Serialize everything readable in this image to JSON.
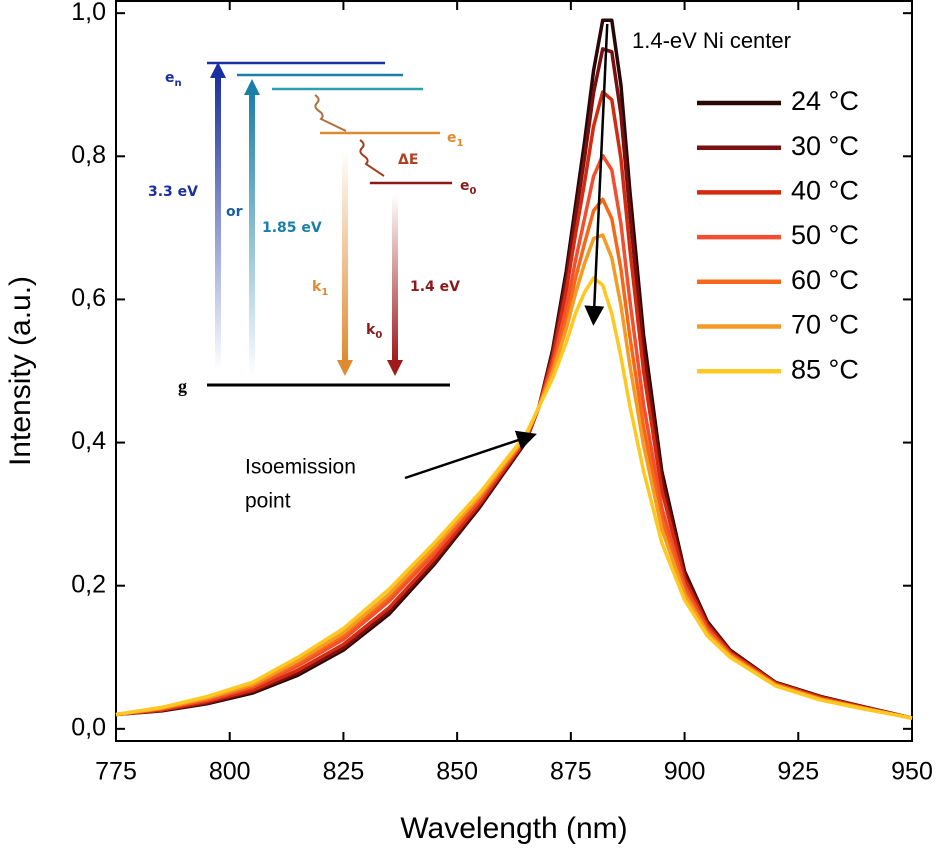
{
  "chart_data": {
    "type": "line",
    "x_label": "Wavelength (nm)",
    "y_label": "Intensity (a.u.)",
    "x": [
      775,
      785,
      795,
      805,
      815,
      825,
      835,
      845,
      855,
      860,
      865,
      868,
      871,
      874,
      876,
      878,
      880,
      882,
      884,
      886,
      888,
      891,
      895,
      900,
      905,
      910,
      920,
      930,
      940,
      950
    ],
    "series": [
      {
        "name": "24 °C",
        "color": "#2a0808",
        "values": [
          0.02,
          0.025,
          0.035,
          0.05,
          0.075,
          0.11,
          0.16,
          0.23,
          0.31,
          0.355,
          0.4,
          0.45,
          0.53,
          0.64,
          0.73,
          0.82,
          0.92,
          0.99,
          0.99,
          0.9,
          0.75,
          0.55,
          0.36,
          0.22,
          0.15,
          0.11,
          0.065,
          0.045,
          0.03,
          0.015
        ]
      },
      {
        "name": "30 °C",
        "color": "#7a1010",
        "values": [
          0.02,
          0.026,
          0.036,
          0.052,
          0.078,
          0.113,
          0.164,
          0.233,
          0.312,
          0.357,
          0.401,
          0.45,
          0.526,
          0.629,
          0.714,
          0.797,
          0.889,
          0.95,
          0.946,
          0.859,
          0.718,
          0.529,
          0.349,
          0.216,
          0.148,
          0.109,
          0.064,
          0.044,
          0.03,
          0.015
        ]
      },
      {
        "name": "40 °C",
        "color": "#d42a10",
        "values": [
          0.02,
          0.026,
          0.038,
          0.054,
          0.082,
          0.118,
          0.169,
          0.238,
          0.315,
          0.359,
          0.403,
          0.45,
          0.519,
          0.613,
          0.69,
          0.763,
          0.842,
          0.89,
          0.879,
          0.797,
          0.669,
          0.499,
          0.333,
          0.209,
          0.145,
          0.107,
          0.064,
          0.044,
          0.029,
          0.015
        ]
      },
      {
        "name": "50 °C",
        "color": "#f24e30",
        "values": [
          0.02,
          0.028,
          0.04,
          0.058,
          0.088,
          0.125,
          0.178,
          0.245,
          0.32,
          0.363,
          0.405,
          0.45,
          0.51,
          0.589,
          0.654,
          0.713,
          0.772,
          0.801,
          0.781,
          0.706,
          0.597,
          0.453,
          0.309,
          0.2,
          0.14,
          0.105,
          0.062,
          0.042,
          0.028,
          0.015
        ]
      },
      {
        "name": "60 °C",
        "color": "#f56818",
        "values": [
          0.02,
          0.028,
          0.042,
          0.06,
          0.092,
          0.13,
          0.184,
          0.25,
          0.324,
          0.365,
          0.407,
          0.45,
          0.503,
          0.572,
          0.629,
          0.678,
          0.724,
          0.74,
          0.713,
          0.643,
          0.547,
          0.422,
          0.292,
          0.193,
          0.136,
          0.103,
          0.062,
          0.042,
          0.028,
          0.015
        ]
      },
      {
        "name": "70 °C",
        "color": "#f59a22",
        "values": [
          0.02,
          0.029,
          0.043,
          0.062,
          0.095,
          0.134,
          0.188,
          0.254,
          0.326,
          0.367,
          0.408,
          0.45,
          0.498,
          0.559,
          0.608,
          0.65,
          0.685,
          0.69,
          0.658,
          0.592,
          0.507,
          0.396,
          0.279,
          0.188,
          0.134,
          0.102,
          0.061,
          0.041,
          0.028,
          0.015
        ]
      },
      {
        "name": "85 °C",
        "color": "#ffc820",
        "values": [
          0.02,
          0.03,
          0.045,
          0.065,
          0.1,
          0.14,
          0.195,
          0.26,
          0.33,
          0.37,
          0.41,
          0.45,
          0.49,
          0.54,
          0.58,
          0.61,
          0.63,
          0.62,
          0.58,
          0.52,
          0.45,
          0.36,
          0.26,
          0.18,
          0.13,
          0.1,
          0.06,
          0.04,
          0.027,
          0.015
        ]
      }
    ],
    "xlim": [
      775,
      950
    ],
    "xticks": [
      775,
      800,
      825,
      850,
      875,
      900,
      925,
      950
    ],
    "ylim": [
      -0.017,
      1.017
    ],
    "yticks": [
      {
        "value": 0,
        "label": "0,0"
      },
      {
        "value": 0.2,
        "label": "0,2"
      },
      {
        "value": 0.4,
        "label": "0,4"
      },
      {
        "value": 0.6,
        "label": "0,6"
      },
      {
        "value": 0.8,
        "label": "0,8"
      },
      {
        "value": 1.0,
        "label": "1,0"
      }
    ],
    "grid": false,
    "legend": "upper right",
    "annotations": {
      "peak_label": "1.4-eV Ni center",
      "isoemission": [
        "Isoemission",
        "point"
      ]
    },
    "inset": {
      "en": {
        "text": "e",
        "sub": "n"
      },
      "e1": {
        "text": "e",
        "sub": "1"
      },
      "e0": {
        "text": "e",
        "sub": "0"
      },
      "g": "g",
      "k1": {
        "text": "k",
        "sub": "1"
      },
      "k0": {
        "text": "k",
        "sub": "0"
      },
      "e33": "3.3 eV",
      "or": "or",
      "e185": "1.85 eV",
      "dE": "ΔE",
      "e14": "1.4 eV"
    }
  }
}
